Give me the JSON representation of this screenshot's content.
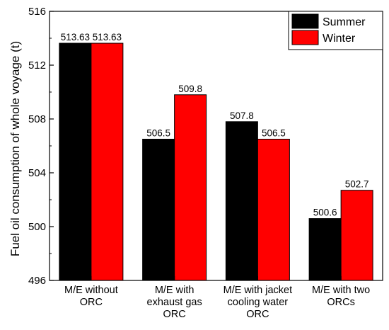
{
  "chart_data": {
    "type": "bar",
    "ylabel": "Fuel oil consumption of whole voyage (t)",
    "xlabel": "",
    "ylim": [
      496,
      516
    ],
    "yticks": [
      496,
      500,
      504,
      508,
      512,
      516
    ],
    "categories": [
      [
        "M/E without",
        "ORC"
      ],
      [
        "M/E with",
        "exhaust gas",
        "ORC"
      ],
      [
        "M/E with jacket",
        "cooling water",
        "ORC"
      ],
      [
        "M/E with two",
        "ORCs"
      ]
    ],
    "series": [
      {
        "name": "Summer",
        "color": "#000000",
        "values": [
          513.63,
          506.5,
          507.8,
          500.6
        ],
        "labels": [
          "513.63",
          "506.5",
          "507.8",
          "500.6"
        ]
      },
      {
        "name": "Winter",
        "color": "#ff0000",
        "values": [
          513.63,
          509.8,
          506.5,
          502.7
        ],
        "labels": [
          "513.63",
          "509.8",
          "506.5",
          "502.7"
        ]
      }
    ],
    "legend_position": "top-right",
    "grid": false
  }
}
